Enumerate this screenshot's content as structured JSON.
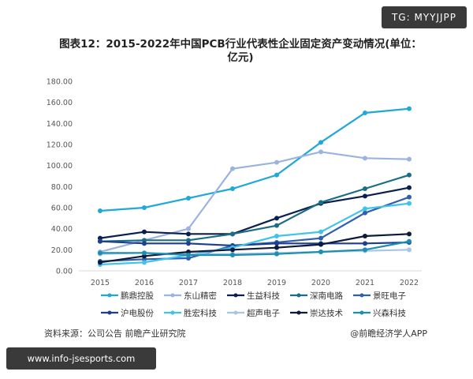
{
  "badge": "TG: MYYJJPP",
  "footer": {
    "source": "资料来源：公司公告 前瞻产业研究院",
    "app": "@前瞻经济学人APP",
    "site": "www.info-jsesports.com"
  },
  "chart_data": {
    "type": "line",
    "title": "图表12：2015-2022年中国PCB行业代表性企业固定资产变动情况(单位：亿元)",
    "x": [
      "2015",
      "2016",
      "2017",
      "2018",
      "2019",
      "2020",
      "2021",
      "2022"
    ],
    "ylim": [
      0,
      180
    ],
    "yticks": [
      "0.00",
      "20.00",
      "40.00",
      "60.00",
      "80.00",
      "100.00",
      "120.00",
      "140.00",
      "160.00",
      "180.00"
    ],
    "grid": false,
    "legend": "bottom",
    "series": [
      {
        "name": "鹏鼎控股",
        "color": "#1fa8d8",
        "values": [
          57,
          60,
          69,
          78,
          91,
          122,
          150,
          154
        ]
      },
      {
        "name": "东山精密",
        "color": "#9bb3e0",
        "values": [
          18,
          29,
          40,
          97,
          103,
          113,
          107,
          106
        ]
      },
      {
        "name": "生益科技",
        "color": "#0b1f4d",
        "values": [
          31,
          37,
          35,
          35,
          50,
          64,
          71,
          79
        ]
      },
      {
        "name": "深南电路",
        "color": "#1a6e86",
        "values": [
          28,
          29,
          29,
          35,
          43,
          65,
          78,
          91
        ]
      },
      {
        "name": "景旺电子",
        "color": "#2f5fae",
        "values": [
          9,
          11,
          12,
          24,
          27,
          31,
          55,
          70
        ]
      },
      {
        "name": "沪电股份",
        "color": "#1e3f8f",
        "values": [
          28,
          26,
          26,
          24,
          26,
          26,
          26,
          27
        ]
      },
      {
        "name": "胜宏科技",
        "color": "#3ec3ec",
        "values": [
          6,
          8,
          15,
          22,
          33,
          37,
          59,
          64
        ]
      },
      {
        "name": "超声电子",
        "color": "#a9c4e6",
        "values": [
          16,
          17,
          16,
          16,
          17,
          18,
          19,
          20
        ]
      },
      {
        "name": "崇达技术",
        "color": "#0d1a3a",
        "values": [
          8,
          14,
          18,
          20,
          22,
          25,
          33,
          35
        ]
      },
      {
        "name": "兴森科技",
        "color": "#1a8fb0",
        "values": [
          17,
          17,
          15,
          15,
          16,
          18,
          20,
          28
        ]
      }
    ]
  }
}
